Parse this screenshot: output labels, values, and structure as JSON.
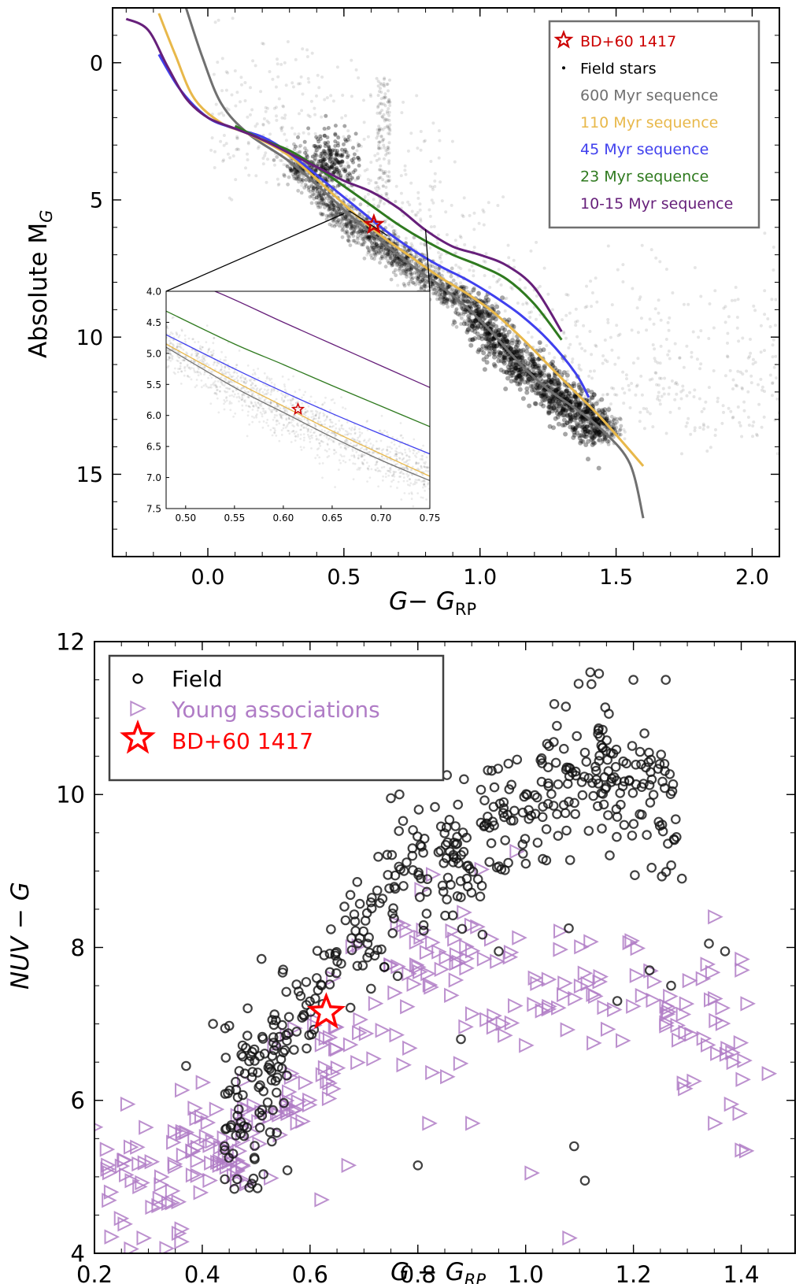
{
  "chart_data": [
    {
      "type": "scatter",
      "panel": "top",
      "xlabel_main": "G− G",
      "xlabel_sub": "RP",
      "ylabel_main": "Absolute M",
      "ylabel_sub": "G",
      "xlim": [
        -0.35,
        2.1
      ],
      "ylim": [
        18,
        -2
      ],
      "y_inverted": true,
      "xticks": [
        0.0,
        0.5,
        1.0,
        1.5,
        2.0
      ],
      "xtick_labels": [
        "0.0",
        "0.5",
        "1.0",
        "1.5",
        "2.0"
      ],
      "yticks": [
        0,
        5,
        10,
        15
      ],
      "ytick_labels": [
        "0",
        "5",
        "10",
        "15"
      ],
      "legend_position": "top-right",
      "target": {
        "name": "BD+60 1417",
        "x": 0.61,
        "y": 5.9,
        "color": "#cc0000"
      },
      "field_stars": {
        "name": "Field stars",
        "color": "#000000"
      },
      "field_ridge": {
        "x": [
          0.35,
          0.45,
          0.55,
          0.65,
          0.75,
          0.85,
          0.95,
          1.05,
          1.15,
          1.25,
          1.35,
          1.45
        ],
        "y": [
          3.8,
          5.2,
          6.0,
          6.7,
          7.4,
          8.1,
          8.9,
          10.0,
          11.0,
          11.9,
          12.6,
          13.3
        ]
      },
      "series": [
        {
          "name": "600 Myr sequence",
          "color": "#707070",
          "x": [
            -0.08,
            -0.02,
            0.05,
            0.15,
            0.3,
            0.45,
            0.55,
            0.65,
            0.75,
            0.85,
            0.95,
            1.05,
            1.15,
            1.25,
            1.35,
            1.45,
            1.55,
            1.6
          ],
          "y": [
            -2.0,
            -0.2,
            1.5,
            2.6,
            3.6,
            4.9,
            5.8,
            6.6,
            7.4,
            8.1,
            8.9,
            9.9,
            11.0,
            11.9,
            12.6,
            13.4,
            14.6,
            16.6
          ]
        },
        {
          "name": "110 Myr sequence",
          "color": "#e8b84a",
          "x": [
            -0.18,
            -0.12,
            -0.05,
            0.05,
            0.15,
            0.3,
            0.45,
            0.55,
            0.65,
            0.75,
            0.85,
            0.95,
            1.05,
            1.15,
            1.25,
            1.35,
            1.45,
            1.6
          ],
          "y": [
            -1.8,
            -0.3,
            1.3,
            2.2,
            2.6,
            3.4,
            4.7,
            5.6,
            6.4,
            7.1,
            7.8,
            8.4,
            9.1,
            10.0,
            11.0,
            12.0,
            13.0,
            14.7
          ]
        },
        {
          "name": "45 Myr sequence",
          "color": "#4040ee",
          "x": [
            -0.18,
            -0.1,
            0.0,
            0.1,
            0.2,
            0.3,
            0.45,
            0.55,
            0.65,
            0.75,
            0.85,
            0.95,
            1.05,
            1.15,
            1.25,
            1.35,
            1.4
          ],
          "y": [
            -0.3,
            1.0,
            2.0,
            2.4,
            2.7,
            3.3,
            4.5,
            5.3,
            6.1,
            6.8,
            7.4,
            7.9,
            8.5,
            9.2,
            10.1,
            11.3,
            12.2
          ]
        },
        {
          "name": "23 Myr sequence",
          "color": "#2f7a1f",
          "x": [
            0.1,
            0.2,
            0.3,
            0.4,
            0.5,
            0.6,
            0.7,
            0.8,
            0.9,
            1.0,
            1.1,
            1.2,
            1.3
          ],
          "y": [
            2.3,
            2.8,
            3.2,
            3.8,
            4.5,
            5.2,
            5.9,
            6.5,
            7.0,
            7.4,
            7.9,
            8.8,
            10.1
          ]
        },
        {
          "name": "10-15 Myr sequence",
          "color": "#661f7a",
          "x": [
            -0.3,
            -0.22,
            -0.15,
            -0.08,
            0.0,
            0.1,
            0.2,
            0.3,
            0.4,
            0.5,
            0.6,
            0.7,
            0.8,
            0.9,
            1.0,
            1.1,
            1.2,
            1.3
          ],
          "y": [
            -1.6,
            -1.2,
            0.1,
            1.3,
            2.0,
            2.4,
            2.8,
            3.3,
            3.8,
            4.3,
            4.7,
            5.3,
            6.1,
            6.7,
            7.0,
            7.4,
            8.2,
            9.8
          ]
        }
      ],
      "inset": {
        "xlim": [
          0.48,
          0.75
        ],
        "ylim": [
          7.5,
          4.0
        ],
        "xticks": [
          0.5,
          0.55,
          0.6,
          0.65,
          0.7,
          0.75
        ],
        "xtick_labels": [
          "0.50",
          "0.55",
          "0.60",
          "0.65",
          "0.70",
          "0.75"
        ],
        "yticks": [
          4.0,
          4.5,
          5.0,
          5.5,
          6.0,
          6.5,
          7.0,
          7.5
        ],
        "ytick_labels": [
          "4.0",
          "4.5",
          "5.0",
          "5.5",
          "6.0",
          "6.5",
          "7.0",
          "7.5"
        ],
        "zoom_source": {
          "x_range": [
            0.5,
            0.8
          ],
          "y": 5.5
        },
        "series": [
          {
            "name": "600 Myr sequence",
            "color": "#707070",
            "x": [
              0.48,
              0.55,
              0.6,
              0.65,
              0.7,
              0.75
            ],
            "y": [
              4.9,
              5.55,
              5.95,
              6.35,
              6.72,
              7.05
            ]
          },
          {
            "name": "110 Myr sequence",
            "color": "#e8b84a",
            "x": [
              0.48,
              0.55,
              0.6,
              0.65,
              0.7,
              0.75
            ],
            "y": [
              4.85,
              5.45,
              5.85,
              6.25,
              6.62,
              6.98
            ]
          },
          {
            "name": "45 Myr sequence",
            "color": "#4040ee",
            "x": [
              0.48,
              0.55,
              0.6,
              0.65,
              0.7,
              0.75
            ],
            "y": [
              4.7,
              5.25,
              5.62,
              5.97,
              6.3,
              6.62
            ]
          },
          {
            "name": "23 Myr sequence",
            "color": "#2f7a1f",
            "x": [
              0.48,
              0.55,
              0.6,
              0.65,
              0.7,
              0.75
            ],
            "y": [
              4.32,
              4.85,
              5.18,
              5.52,
              5.85,
              6.18
            ]
          },
          {
            "name": "10-15 Myr sequence",
            "color": "#661f7a",
            "x": [
              0.48,
              0.53,
              0.6,
              0.65,
              0.7,
              0.75
            ],
            "y": [
              3.75,
              4.0,
              4.5,
              4.85,
              5.2,
              5.55
            ]
          }
        ],
        "target": {
          "x": 0.615,
          "y": 5.9
        }
      }
    },
    {
      "type": "scatter",
      "panel": "bottom",
      "xlabel_main": "G − G",
      "xlabel_sub": "RP",
      "ylabel": "NUV − G",
      "xlim": [
        0.2,
        1.5
      ],
      "ylim": [
        4,
        12
      ],
      "xticks": [
        0.2,
        0.4,
        0.6,
        0.8,
        1.0,
        1.2,
        1.4
      ],
      "xtick_labels": [
        "0.2",
        "0.4",
        "0.6",
        "0.8",
        "1.0",
        "1.2",
        "1.4"
      ],
      "yticks": [
        4,
        6,
        8,
        10,
        12
      ],
      "ytick_labels": [
        "4",
        "6",
        "8",
        "10",
        "12"
      ],
      "legend_position": "top-left",
      "legend": [
        {
          "label": "Field",
          "color": "#000000",
          "marker": "circle"
        },
        {
          "label": "Young associations",
          "color": "#b07cc6",
          "marker": "triangle-right"
        },
        {
          "label": "BD+60 1417",
          "color": "#ff0000",
          "marker": "star"
        }
      ],
      "target": {
        "name": "BD+60 1417",
        "x": 0.63,
        "y": 7.15
      },
      "field_trend": {
        "x": [
          0.45,
          0.55,
          0.65,
          0.75,
          0.85,
          0.95,
          1.05,
          1.12,
          1.2,
          1.28
        ],
        "y": [
          5.8,
          6.8,
          7.9,
          8.8,
          9.2,
          9.5,
          10.0,
          10.4,
          10.1,
          9.8
        ],
        "spread": 0.45
      },
      "field_outliers": [
        {
          "x": 0.8,
          "y": 10.6
        },
        {
          "x": 1.12,
          "y": 11.6
        },
        {
          "x": 1.2,
          "y": 11.5
        },
        {
          "x": 1.26,
          "y": 11.5
        },
        {
          "x": 1.29,
          "y": 8.9
        },
        {
          "x": 1.34,
          "y": 8.05
        },
        {
          "x": 1.37,
          "y": 7.95
        },
        {
          "x": 1.09,
          "y": 5.4
        },
        {
          "x": 1.11,
          "y": 4.95
        },
        {
          "x": 0.8,
          "y": 5.15
        },
        {
          "x": 0.88,
          "y": 6.8
        },
        {
          "x": 1.17,
          "y": 7.3
        },
        {
          "x": 1.23,
          "y": 7.7
        },
        {
          "x": 1.27,
          "y": 7.5
        },
        {
          "x": 0.42,
          "y": 7.0
        },
        {
          "x": 0.37,
          "y": 6.45
        },
        {
          "x": 0.51,
          "y": 7.85
        },
        {
          "x": 1.08,
          "y": 8.25
        },
        {
          "x": 0.95,
          "y": 7.95
        }
      ],
      "young_trend": {
        "x": [
          0.22,
          0.3,
          0.4,
          0.5,
          0.6,
          0.7,
          0.8,
          0.9,
          1.0,
          1.1,
          1.2,
          1.3,
          1.4
        ],
        "y": [
          5.0,
          5.3,
          5.4,
          5.8,
          6.4,
          7.0,
          7.5,
          7.7,
          7.6,
          7.6,
          7.4,
          7.0,
          6.6
        ],
        "spread": 0.55
      },
      "young_outliers": [
        {
          "x": 0.2,
          "y": 5.65
        },
        {
          "x": 0.26,
          "y": 5.95
        },
        {
          "x": 0.29,
          "y": 4.2
        },
        {
          "x": 0.36,
          "y": 4.15
        },
        {
          "x": 0.62,
          "y": 4.7
        },
        {
          "x": 0.67,
          "y": 5.15
        },
        {
          "x": 0.82,
          "y": 5.7
        },
        {
          "x": 0.9,
          "y": 5.7
        },
        {
          "x": 1.01,
          "y": 5.05
        },
        {
          "x": 1.08,
          "y": 4.2
        },
        {
          "x": 1.35,
          "y": 5.7
        },
        {
          "x": 1.38,
          "y": 5.95
        },
        {
          "x": 1.4,
          "y": 5.35
        },
        {
          "x": 1.45,
          "y": 6.35
        },
        {
          "x": 1.35,
          "y": 8.4
        },
        {
          "x": 0.96,
          "y": 6.85
        }
      ]
    }
  ]
}
